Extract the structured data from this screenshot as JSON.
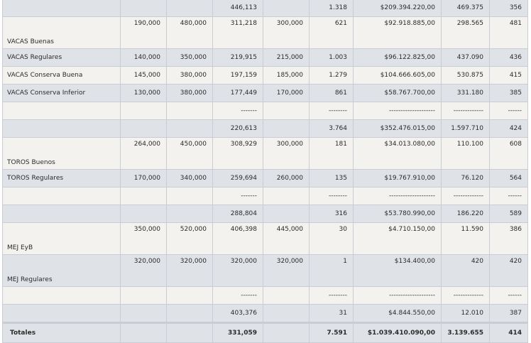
{
  "rows": [
    {
      "label": "",
      "c1": "",
      "c2": "",
      "c3": "446,113",
      "c4": "",
      "c5": "1.318",
      "c6": "$209.394.220,00",
      "c7": "469.375",
      "c8": "356"
    },
    {
      "label": "VACAS Buenas",
      "c1": "190,000",
      "c2": "480,000",
      "c3": "311,218",
      "c4": "300,000",
      "c5": "621",
      "c6": "$92.918.885,00",
      "c7": "298.565",
      "c8": "481"
    },
    {
      "label": "VACAS Regulares",
      "c1": "140,000",
      "c2": "350,000",
      "c3": "219,915",
      "c4": "215,000",
      "c5": "1.003",
      "c6": "$96.122.825,00",
      "c7": "437.090",
      "c8": "436"
    },
    {
      "label": "VACAS Conserva Buena",
      "c1": "145,000",
      "c2": "380,000",
      "c3": "197,159",
      "c4": "185,000",
      "c5": "1.279",
      "c6": "$104.666.605,00",
      "c7": "530.875",
      "c8": "415"
    },
    {
      "label": "VACAS Conserva Inferior",
      "c1": "130,000",
      "c2": "380,000",
      "c3": "177,449",
      "c4": "170,000",
      "c5": "861",
      "c6": "$58.767.700,00",
      "c7": "331.180",
      "c8": "385"
    },
    {
      "label": "",
      "c1": "",
      "c2": "",
      "c3": "-------",
      "c4": "",
      "c5": "--------",
      "c6": "--------------------",
      "c7": "-------------",
      "c8": "------"
    },
    {
      "label": "",
      "c1": "",
      "c2": "",
      "c3": "220,613",
      "c4": "",
      "c5": "3.764",
      "c6": "$352.476.015,00",
      "c7": "1.597.710",
      "c8": "424"
    },
    {
      "label": "TOROS Buenos",
      "c1": "264,000",
      "c2": "450,000",
      "c3": "308,929",
      "c4": "300,000",
      "c5": "181",
      "c6": "$34.013.080,00",
      "c7": "110.100",
      "c8": "608"
    },
    {
      "label": "TOROS Regulares",
      "c1": "170,000",
      "c2": "340,000",
      "c3": "259,694",
      "c4": "260,000",
      "c5": "135",
      "c6": "$19.767.910,00",
      "c7": "76.120",
      "c8": "564"
    },
    {
      "label": "",
      "c1": "",
      "c2": "",
      "c3": "-------",
      "c4": "",
      "c5": "--------",
      "c6": "--------------------",
      "c7": "-------------",
      "c8": "------"
    },
    {
      "label": "",
      "c1": "",
      "c2": "",
      "c3": "288,804",
      "c4": "",
      "c5": "316",
      "c6": "$53.780.990,00",
      "c7": "186.220",
      "c8": "589"
    },
    {
      "label": "MEJ EyB",
      "c1": "350,000",
      "c2": "520,000",
      "c3": "406,398",
      "c4": "445,000",
      "c5": "30",
      "c6": "$4.710.150,00",
      "c7": "11.590",
      "c8": "386"
    },
    {
      "label": "MEJ Regulares",
      "c1": "320,000",
      "c2": "320,000",
      "c3": "320,000",
      "c4": "320,000",
      "c5": "1",
      "c6": "$134.400,00",
      "c7": "420",
      "c8": "420"
    },
    {
      "label": "",
      "c1": "",
      "c2": "",
      "c3": "-------",
      "c4": "",
      "c5": "--------",
      "c6": "--------------------",
      "c7": "-------------",
      "c8": "------"
    },
    {
      "label": "",
      "c1": "",
      "c2": "",
      "c3": "403,376",
      "c4": "",
      "c5": "31",
      "c6": "$4.844.550,00",
      "c7": "12.010",
      "c8": "387"
    },
    {
      "label": "Totales",
      "c1": "",
      "c2": "",
      "c3": "331,059",
      "c4": "",
      "c5": "7.591",
      "c6": "$1.039.410.090,00",
      "c7": "3.139.655",
      "c8": "414"
    }
  ]
}
